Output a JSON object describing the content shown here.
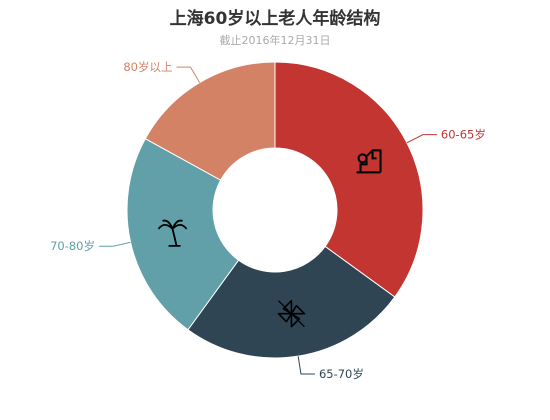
{
  "chart_data": {
    "type": "pie",
    "title": "上海60岁以上老人年龄结构",
    "subtitle": "截止2016年12月31日",
    "donut": true,
    "categories": [
      "60-65岁",
      "65-70岁",
      "70-80岁",
      "80岁以上"
    ],
    "values": [
      35,
      25,
      23,
      17
    ],
    "colors": [
      "#c23531",
      "#2f4554",
      "#61a0a8",
      "#d48265"
    ],
    "slice_icons": [
      "wrench-pipe-icon",
      "pinwheel-icon",
      "palm-tree-icon",
      ""
    ],
    "legend": "none"
  }
}
